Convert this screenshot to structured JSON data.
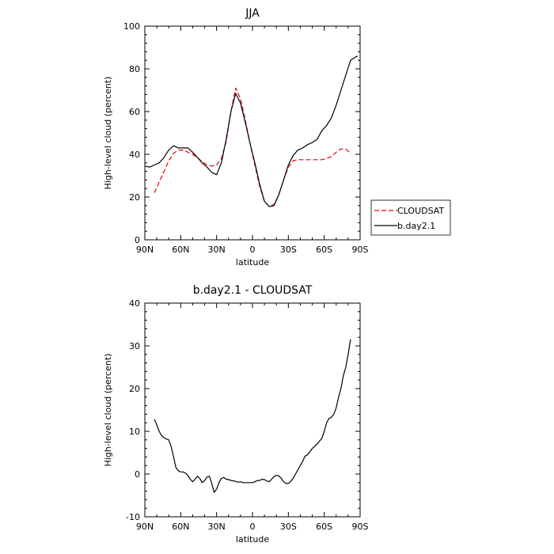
{
  "chart_data": [
    {
      "type": "line",
      "title": "JJA",
      "xlabel": "latitude",
      "ylabel": "High-level cloud (percent)",
      "xlim": [
        90,
        -90
      ],
      "ylim": [
        0,
        100
      ],
      "x_ticks": [
        90,
        60,
        30,
        0,
        -30,
        -60,
        -90
      ],
      "x_tick_labels": [
        "90N",
        "60N",
        "30N",
        "0",
        "30S",
        "60S",
        "90S"
      ],
      "y_ticks": [
        0,
        20,
        40,
        60,
        80,
        100
      ],
      "y_tick_labels": [
        "0",
        "20",
        "40",
        "60",
        "80",
        "100"
      ],
      "legend_position": "right",
      "series": [
        {
          "name": "CLOUDSAT",
          "color": "#e8000b",
          "dash": "dashed",
          "x": [
            82,
            78,
            74,
            70,
            66,
            62,
            58,
            54,
            50,
            46,
            42,
            38,
            34,
            30,
            26,
            22,
            18,
            14,
            10,
            6,
            2,
            -2,
            -6,
            -10,
            -14,
            -18,
            -22,
            -26,
            -30,
            -34,
            -38,
            -42,
            -46,
            -50,
            -54,
            -58,
            -62,
            -66,
            -70,
            -74,
            -78,
            -80,
            -82
          ],
          "y": [
            22,
            27,
            32,
            37,
            40.5,
            42,
            42,
            41,
            40,
            38.5,
            36.5,
            35,
            34.5,
            35,
            38,
            46,
            60,
            71,
            66,
            56,
            45,
            35,
            25,
            18,
            15.5,
            16.5,
            21,
            28,
            34,
            37,
            37.5,
            37.5,
            37.5,
            37.5,
            37.5,
            37.5,
            38,
            39,
            41,
            42.5,
            42.5,
            41.5,
            40
          ]
        },
        {
          "name": "b.day2.1",
          "color": "#000000",
          "dash": "solid",
          "x": [
            90,
            86,
            82,
            78,
            74,
            70,
            66,
            62,
            58,
            54,
            50,
            46,
            42,
            38,
            34,
            30,
            26,
            22,
            18,
            14,
            10,
            6,
            2,
            -2,
            -6,
            -10,
            -14,
            -18,
            -22,
            -26,
            -30,
            -34,
            -38,
            -42,
            -46,
            -50,
            -54,
            -58,
            -62,
            -66,
            -70,
            -74,
            -78,
            -82,
            -86,
            -88
          ],
          "y": [
            34.5,
            34,
            35,
            36,
            38.5,
            42,
            44,
            43,
            43,
            43,
            41,
            38.5,
            36,
            34,
            31.5,
            30.5,
            36,
            47,
            60,
            68.5,
            64,
            55,
            45,
            36,
            26,
            18,
            15.5,
            16,
            21,
            28,
            35,
            39.5,
            42,
            43,
            44.5,
            45.5,
            47,
            51,
            53.5,
            57,
            63,
            70,
            77,
            84,
            85.5,
            86
          ]
        }
      ]
    },
    {
      "type": "line",
      "title": "b.day2.1 - CLOUDSAT",
      "xlabel": "latitude",
      "ylabel": "High-level cloud (percent)",
      "xlim": [
        90,
        -90
      ],
      "ylim": [
        -10,
        40
      ],
      "x_ticks": [
        90,
        60,
        30,
        0,
        -30,
        -60,
        -90
      ],
      "x_tick_labels": [
        "90N",
        "60N",
        "30N",
        "0",
        "30S",
        "60S",
        "90S"
      ],
      "y_ticks": [
        -10,
        0,
        10,
        20,
        30,
        40
      ],
      "y_tick_labels": [
        "-10",
        "0",
        "10",
        "20",
        "30",
        "40"
      ],
      "series": [
        {
          "color": "#000000",
          "dash": "solid",
          "x": [
            82,
            80,
            78,
            76,
            74,
            72,
            70,
            68,
            66,
            64,
            62,
            60,
            58,
            56,
            54,
            52,
            50,
            48,
            46,
            44,
            42,
            40,
            38,
            36,
            34,
            32,
            30,
            28,
            26,
            24,
            22,
            20,
            18,
            16,
            14,
            12,
            10,
            8,
            6,
            4,
            2,
            0,
            -2,
            -4,
            -6,
            -8,
            -10,
            -12,
            -14,
            -16,
            -18,
            -20,
            -22,
            -24,
            -26,
            -28,
            -30,
            -32,
            -34,
            -36,
            -38,
            -40,
            -42,
            -44,
            -46,
            -48,
            -50,
            -52,
            -54,
            -56,
            -58,
            -60,
            -62,
            -64,
            -66,
            -68,
            -70,
            -72,
            -74,
            -76,
            -78,
            -80,
            -82
          ],
          "y": [
            12.8,
            11.5,
            10,
            9,
            8.5,
            8.2,
            8,
            6.5,
            4,
            1.5,
            0.8,
            0.5,
            0.5,
            0.2,
            -0.3,
            -1.2,
            -1.8,
            -1.2,
            -0.5,
            -1,
            -2,
            -1.5,
            -0.7,
            -0.5,
            -2.2,
            -4.3,
            -3.5,
            -2,
            -1,
            -0.8,
            -1.2,
            -1.3,
            -1.5,
            -1.6,
            -1.7,
            -1.9,
            -1.8,
            -2,
            -2,
            -2,
            -2,
            -2,
            -1.8,
            -1.5,
            -1.5,
            -1.2,
            -1.3,
            -1.6,
            -1.8,
            -1.2,
            -0.6,
            -0.3,
            -0.4,
            -1,
            -1.8,
            -2.2,
            -2.2,
            -1.7,
            -1,
            0,
            1,
            2,
            3,
            4.2,
            4.5,
            5.2,
            6,
            6.5,
            7,
            7.7,
            8.3,
            10,
            12,
            13,
            13.3,
            14,
            15.5,
            18,
            20,
            23,
            25,
            28,
            31.5
          ]
        }
      ]
    }
  ]
}
